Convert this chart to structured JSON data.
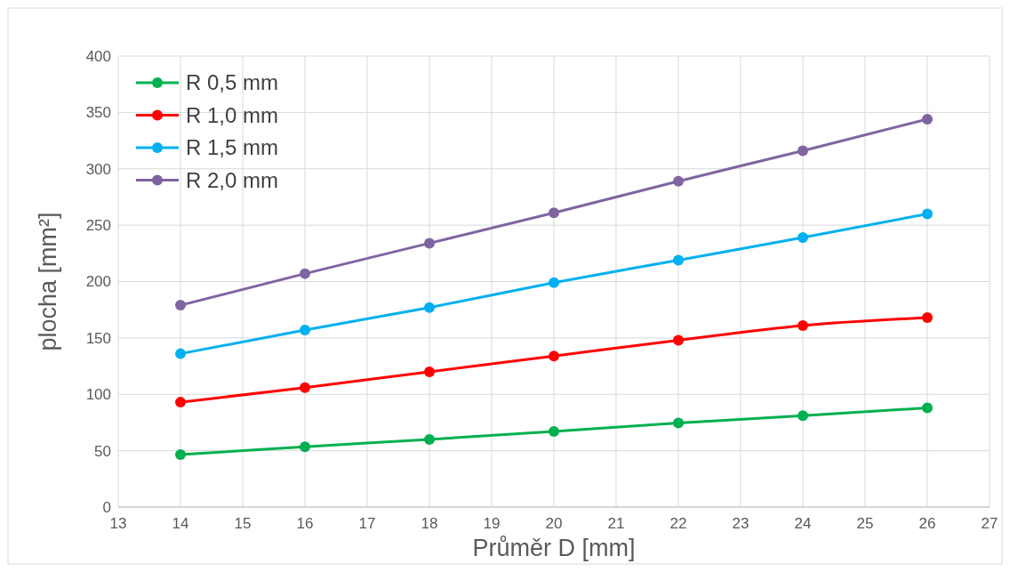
{
  "chart_data": {
    "type": "line",
    "xlabel": "Průměr D [mm]",
    "ylabel": "plocha [mm²]",
    "x": [
      14,
      16,
      18,
      20,
      22,
      24,
      26
    ],
    "series": [
      {
        "name": "R 0,5 mm",
        "color": "#00b050",
        "values": [
          46.5,
          53.5,
          60,
          67,
          74.5,
          81,
          88
        ]
      },
      {
        "name": "R 1,0 mm",
        "color": "#ff0000",
        "values": [
          93,
          106,
          120,
          134,
          148,
          161,
          168
        ]
      },
      {
        "name": "R 1,5 mm",
        "color": "#00b0f0",
        "values": [
          136,
          157,
          177,
          199,
          219,
          239,
          260
        ]
      },
      {
        "name": "R 2,0 mm",
        "color": "#8064a2",
        "values": [
          179,
          207,
          234,
          261,
          289,
          316,
          344
        ]
      }
    ],
    "xlim": [
      13,
      27
    ],
    "xticks": [
      13,
      14,
      15,
      16,
      17,
      18,
      19,
      20,
      21,
      22,
      23,
      24,
      25,
      26,
      27
    ],
    "ylim": [
      0,
      400
    ],
    "yticks": [
      0,
      50,
      100,
      150,
      200,
      250,
      300,
      350,
      400
    ],
    "grid": true,
    "legend": "top left",
    "marker": "circle",
    "line_style": "solid"
  }
}
